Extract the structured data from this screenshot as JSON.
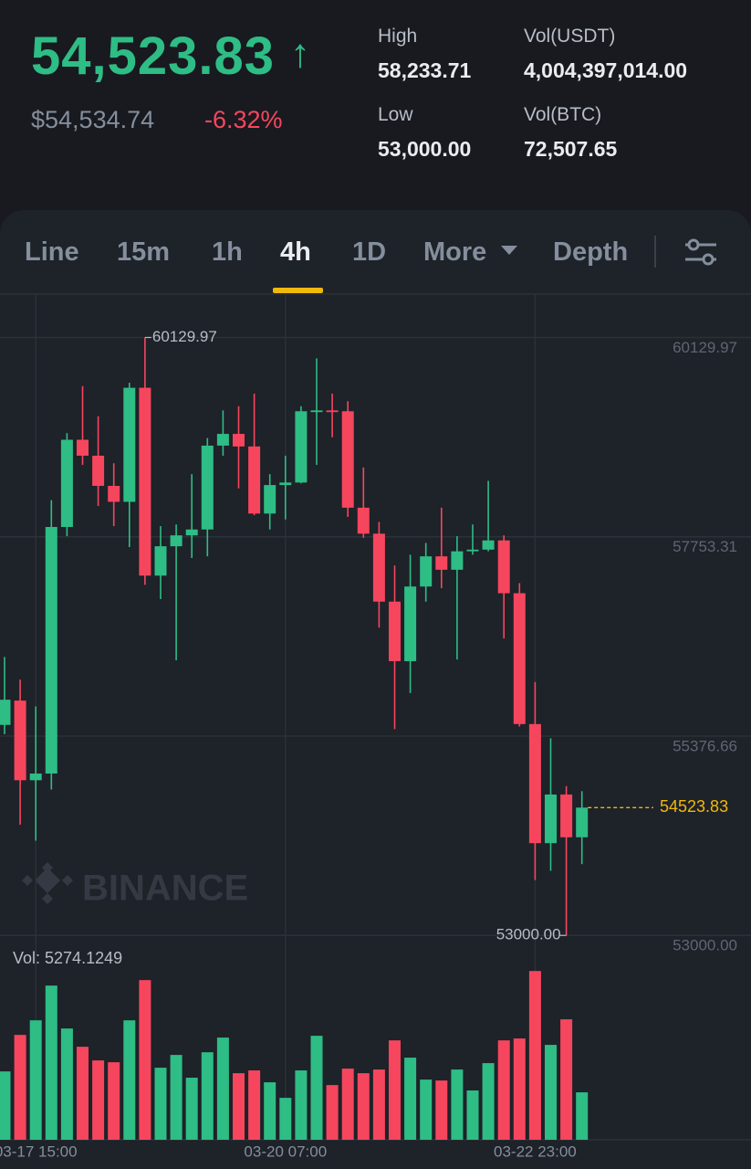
{
  "header": {
    "last_price": "54,523.83",
    "arrow": "↑",
    "fiat_price": "$54,534.74",
    "change": "-6.32%",
    "stats": [
      {
        "label": "High",
        "value": "58,233.71"
      },
      {
        "label": "Vol(USDT)",
        "value": "4,004,397,014.00"
      },
      {
        "label": "Low",
        "value": "53,000.00"
      },
      {
        "label": "Vol(BTC)",
        "value": "72,507.65"
      }
    ]
  },
  "tabs": [
    "Line",
    "15m",
    "1h",
    "4h",
    "1D",
    "More",
    "Depth"
  ],
  "selected_tab": "4h",
  "chart_data": {
    "type": "candlestick",
    "watermark": "BINANCE",
    "up_color": "#2ebd85",
    "down_color": "#f6465d",
    "categories": [
      null,
      null,
      "03-17 15:00",
      null,
      null,
      null,
      null,
      null,
      null,
      null,
      null,
      null,
      null,
      null,
      null,
      null,
      null,
      null,
      "03-20 07:00",
      null,
      null,
      null,
      null,
      null,
      null,
      null,
      null,
      null,
      null,
      null,
      null,
      null,
      null,
      null,
      "03-22 23:00",
      null,
      null,
      null
    ],
    "open": [
      55510,
      55800,
      54850,
      54930,
      57870,
      58910,
      58720,
      58360,
      58170,
      59530,
      57290,
      57640,
      57770,
      57840,
      58840,
      58980,
      58830,
      58030,
      58370,
      58400,
      59240,
      59260,
      59250,
      58100,
      57790,
      56980,
      56270,
      57160,
      57520,
      57360,
      57580,
      57600,
      57710,
      57080,
      55520,
      54100,
      54680,
      54170
    ],
    "high": [
      56320,
      56050,
      55730,
      58190,
      58990,
      59550,
      59190,
      58630,
      59590,
      60129.97,
      57880,
      57900,
      58500,
      58930,
      59260,
      59310,
      59460,
      58500,
      58720,
      59310,
      59880,
      59460,
      59370,
      58580,
      57930,
      57410,
      57540,
      57680,
      58100,
      57760,
      57900,
      58420,
      57770,
      57200,
      56020,
      55350,
      54780,
      54720
    ],
    "low": [
      55400,
      54320,
      54130,
      54740,
      57760,
      58610,
      58120,
      57880,
      57630,
      57180,
      57010,
      56280,
      57500,
      57520,
      58720,
      58330,
      58010,
      57840,
      57960,
      58390,
      58610,
      58940,
      57990,
      57740,
      56670,
      55460,
      55890,
      56980,
      57140,
      56290,
      57540,
      57580,
      56540,
      55490,
      53660,
      53770,
      53000,
      53850
    ],
    "close": [
      55810,
      54850,
      54930,
      57870,
      58910,
      58720,
      58360,
      58170,
      59530,
      57290,
      57640,
      57770,
      57840,
      58840,
      58980,
      58830,
      58030,
      58370,
      58400,
      59250,
      59260,
      59240,
      58100,
      57790,
      56980,
      56270,
      57160,
      57520,
      57360,
      57580,
      57600,
      57710,
      57080,
      55520,
      54100,
      54680,
      54170,
      54523.83
    ],
    "volume": [
      7600,
      11660,
      13280,
      17140,
      12370,
      10340,
      8820,
      8620,
      13280,
      17750,
      8010,
      9430,
      6900,
      9730,
      11360,
      7400,
      7710,
      6390,
      4660,
      7710,
      11560,
      6080,
      7910,
      7400,
      7810,
      11050,
      9130,
      6690,
      6590,
      7810,
      5480,
      8520,
      11050,
      11260,
      18760,
      10550,
      13390,
      5274.1249
    ],
    "volume_label": "Vol: 5274.1249",
    "ylim": [
      52850,
      60560
    ],
    "yticks": [
      60129.97,
      57753.31,
      55376.66,
      {
        "value": 53000,
        "label": "53000.00"
      }
    ],
    "vlim": [
      0,
      20000
    ],
    "grid": true,
    "last_price": 54523.83,
    "high_marker": 60129.97,
    "low_marker": {
      "value": 53000,
      "label": "53000.00"
    }
  }
}
